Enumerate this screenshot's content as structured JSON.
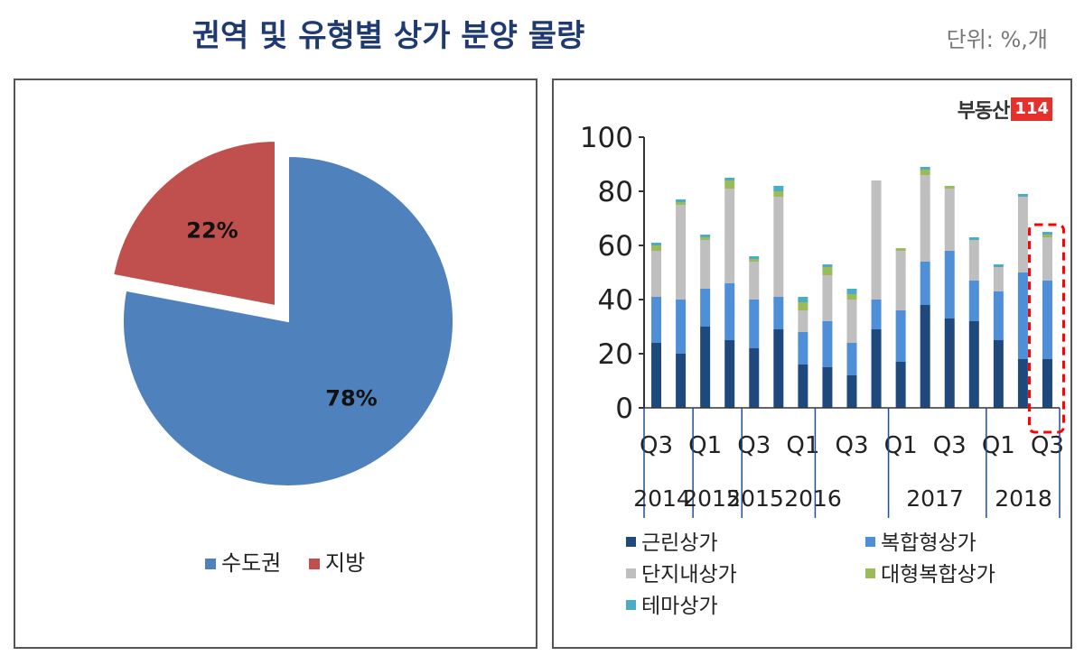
{
  "header": {
    "title": "권역 및 유형별 상가 분양 물량",
    "unit": "단위: %,개"
  },
  "logo": {
    "text": "부동산",
    "number": "114"
  },
  "colors": {
    "sudo": "#4f81bd",
    "jibang": "#c0504d",
    "neighborhood": "#1f497d",
    "complex": "#4f8fd8",
    "complexlarge": "#9bbb59",
    "danji": "#bfbfbf",
    "theme": "#4bacc6",
    "highlight": "#ff0000"
  },
  "chart_data": [
    {
      "type": "pie",
      "title": "",
      "slices": [
        {
          "label": "수도권",
          "value": 78,
          "display": "78%"
        },
        {
          "label": "지방",
          "value": 22,
          "display": "22%"
        }
      ],
      "legend": [
        "수도권",
        "지방"
      ],
      "legend_position": "bottom"
    },
    {
      "type": "bar",
      "stacked": true,
      "ylim": [
        0,
        100
      ],
      "yticks": [
        "0",
        "20",
        "40",
        "60",
        "80",
        "100"
      ],
      "xtick_labels": [
        "Q3",
        "Q1",
        "Q3",
        "Q1",
        "Q3",
        "Q1",
        "Q3",
        "Q1",
        "Q3"
      ],
      "year_labels": [
        "2014",
        "2015",
        "2015",
        "2016",
        "2017",
        "2018"
      ],
      "quarters": 17,
      "series": [
        {
          "name": "근린상가",
          "values": [
            24,
            20,
            30,
            25,
            22,
            29,
            16,
            15,
            12,
            29,
            17,
            38,
            33,
            32,
            25,
            18,
            18
          ]
        },
        {
          "name": "복합형상가",
          "values": [
            17,
            20,
            14,
            21,
            18,
            12,
            12,
            17,
            12,
            11,
            19,
            16,
            25,
            15,
            18,
            32,
            29
          ]
        },
        {
          "name": "단지내상가",
          "values": [
            17,
            35,
            18,
            35,
            14,
            37,
            8,
            17,
            16,
            44,
            22,
            32,
            23,
            15,
            9,
            28,
            16
          ]
        },
        {
          "name": "대형복합상가",
          "values": [
            2,
            1,
            1,
            3,
            1,
            2,
            3,
            3,
            2,
            0,
            1,
            2,
            1,
            0,
            0,
            0,
            1
          ]
        },
        {
          "name": "테마상가",
          "values": [
            1,
            1,
            1,
            1,
            1,
            2,
            2,
            1,
            2,
            0,
            0,
            1,
            0,
            1,
            1,
            1,
            1
          ]
        }
      ],
      "legend": [
        "근린상가",
        "복합형상가",
        "단지내상가",
        "대형복합상가",
        "테마상가"
      ],
      "legend_position": "bottom",
      "highlight_last_bar": true
    }
  ]
}
